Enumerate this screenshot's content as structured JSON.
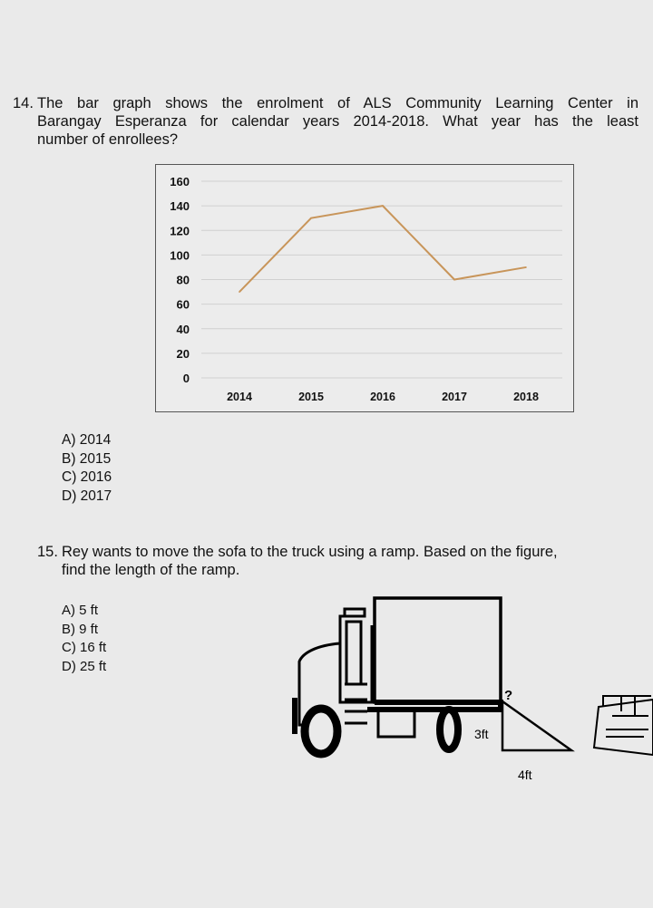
{
  "q14": {
    "number": "14.",
    "text_line1": "The bar graph shows the enrolment of ALS Community Learning Center in",
    "text_line2": "Barangay Esperanza for calendar years 2014-2018. What year has the least",
    "text_line3": "number of enrollees?",
    "options": [
      "A) 2014",
      "B) 2015",
      "C) 2016",
      "D) 2017"
    ]
  },
  "chart_data": {
    "type": "line",
    "categories": [
      "2014",
      "2015",
      "2016",
      "2017",
      "2018"
    ],
    "values": [
      70,
      130,
      140,
      80,
      90
    ],
    "yticks": [
      "0",
      "20",
      "40",
      "60",
      "80",
      "100",
      "120",
      "140",
      "160"
    ],
    "ylim": [
      0,
      160
    ],
    "grid": true,
    "line_color": "#c8955a"
  },
  "q15": {
    "number": "15.",
    "text_line1": "Rey wants to move the sofa to the truck using a ramp. Based on the figure,",
    "text_line2": "find the length of the ramp.",
    "options": [
      "A) 5 ft",
      "B) 9 ft",
      "C) 16 ft",
      "D) 25 ft"
    ],
    "figure": {
      "unknown": "?",
      "height": "3ft",
      "base": "4ft"
    }
  }
}
